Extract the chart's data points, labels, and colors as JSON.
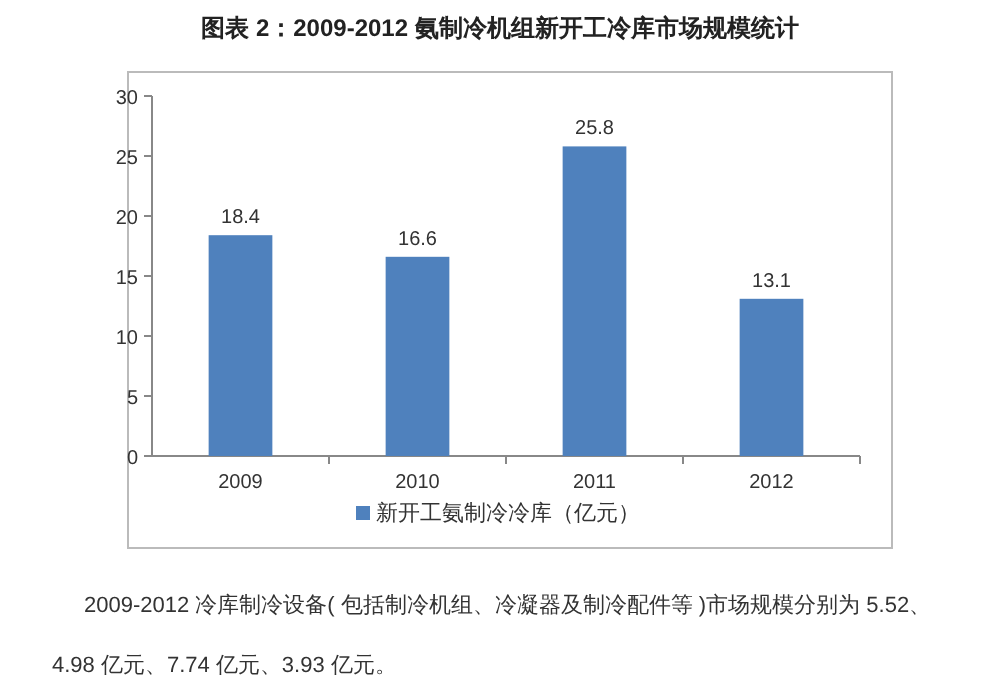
{
  "chart_data": {
    "type": "bar",
    "title": "图表 2：2009-2012 氨制冷机组新开工冷库市场规模统计",
    "categories": [
      "2009",
      "2010",
      "2011",
      "2012"
    ],
    "series": [
      {
        "name": "新开工氨制冷冷库（亿元）",
        "color": "#4f81bd",
        "values": [
          18.4,
          16.6,
          25.8,
          13.1
        ]
      }
    ],
    "ylim": [
      0,
      30
    ],
    "yticks": [
      0,
      5,
      10,
      15,
      20,
      25,
      30
    ],
    "data_labels": true,
    "legend": "bottom",
    "annotations": [
      "2009-2012 冷库制冷设备( 包括制冷机组、冷凝器及制冷配件等 )市场规模分别为 5.52、4.98 亿元、7.74 亿元、3.93 亿元。"
    ]
  }
}
